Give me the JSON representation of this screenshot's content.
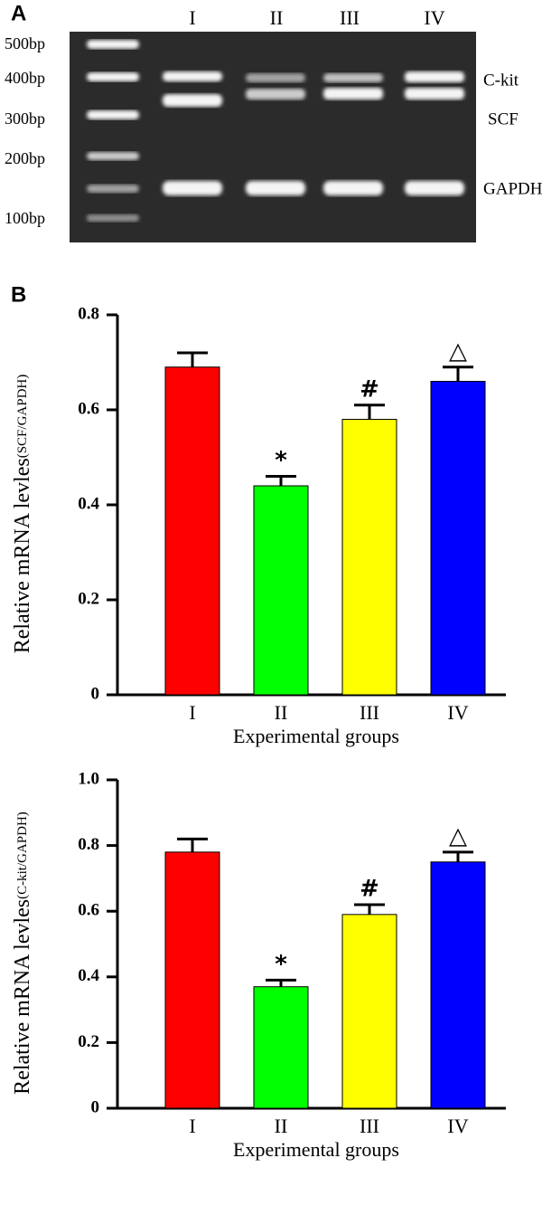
{
  "panel_a": {
    "label": "A",
    "lanes": [
      "I",
      "II",
      "III",
      "IV"
    ],
    "ladder": [
      "500bp",
      "400bp",
      "300bp",
      "200bp",
      "100bp"
    ],
    "bands": [
      "C-kit",
      "SCF",
      "GAPDH"
    ]
  },
  "panel_b": {
    "label": "B"
  },
  "chart_data": [
    {
      "type": "bar",
      "ylabel": "Relative mRNA levles",
      "ylabel_sub": "(SCF/GAPDH)",
      "xlabel": "Experimental groups",
      "categories": [
        "I",
        "II",
        "III",
        "IV"
      ],
      "values": [
        0.69,
        0.44,
        0.58,
        0.66
      ],
      "errors": [
        0.03,
        0.02,
        0.03,
        0.03
      ],
      "annotations": [
        null,
        "*",
        "#",
        "△"
      ],
      "colors": [
        "#ff0000",
        "#00ff00",
        "#ffff00",
        "#0000ff"
      ],
      "ylim": [
        0,
        0.8
      ],
      "yticks": [
        0,
        0.2,
        0.4,
        0.6,
        0.8
      ]
    },
    {
      "type": "bar",
      "ylabel": "Relative mRNA levles",
      "ylabel_sub": "(C-kit/GAPDH)",
      "xlabel": "Experimental groups",
      "categories": [
        "I",
        "II",
        "III",
        "IV"
      ],
      "values": [
        0.78,
        0.37,
        0.59,
        0.75
      ],
      "errors": [
        0.04,
        0.02,
        0.03,
        0.03
      ],
      "annotations": [
        null,
        "*",
        "#",
        "△"
      ],
      "colors": [
        "#ff0000",
        "#00ff00",
        "#ffff00",
        "#0000ff"
      ],
      "ylim": [
        0,
        1
      ],
      "yticks": [
        0,
        0.2,
        0.4,
        0.6,
        0.8,
        {
          "value": 1,
          "label": "1.0"
        }
      ]
    }
  ]
}
